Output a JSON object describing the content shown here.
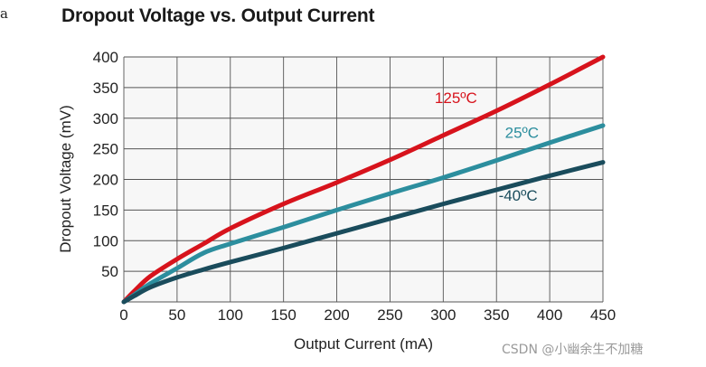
{
  "page": {
    "fragment": "a",
    "watermark": "CSDN @小幽余生不加糖"
  },
  "chart_data": {
    "type": "line",
    "title": "Dropout Voltage vs. Output Current",
    "xlabel": "Output Current (mA)",
    "ylabel": "Dropout Voltage (mV)",
    "xlim": [
      0,
      450
    ],
    "ylim": [
      0,
      400
    ],
    "xticks": [
      0,
      50,
      100,
      150,
      200,
      250,
      300,
      350,
      400,
      450
    ],
    "yticks": [
      50,
      100,
      150,
      200,
      250,
      300,
      350,
      400
    ],
    "grid": true,
    "series": [
      {
        "name": "125ºC",
        "color": "#d7131c",
        "x": [
          0,
          10,
          25,
          50,
          75,
          100,
          150,
          200,
          250,
          300,
          350,
          400,
          450
        ],
        "y": [
          0,
          18,
          42,
          70,
          95,
          120,
          160,
          195,
          232,
          272,
          312,
          355,
          400
        ]
      },
      {
        "name": "25ºC",
        "color": "#2c8e9e",
        "x": [
          0,
          10,
          25,
          50,
          75,
          100,
          150,
          200,
          250,
          300,
          350,
          400,
          450
        ],
        "y": [
          0,
          12,
          30,
          55,
          80,
          95,
          122,
          150,
          177,
          203,
          231,
          260,
          288
        ]
      },
      {
        "name": "-40ºC",
        "color": "#1a4c5c",
        "x": [
          0,
          10,
          25,
          50,
          75,
          100,
          150,
          200,
          250,
          300,
          350,
          400,
          450
        ],
        "y": [
          0,
          10,
          24,
          40,
          53,
          65,
          88,
          112,
          136,
          160,
          183,
          206,
          228
        ]
      }
    ]
  }
}
